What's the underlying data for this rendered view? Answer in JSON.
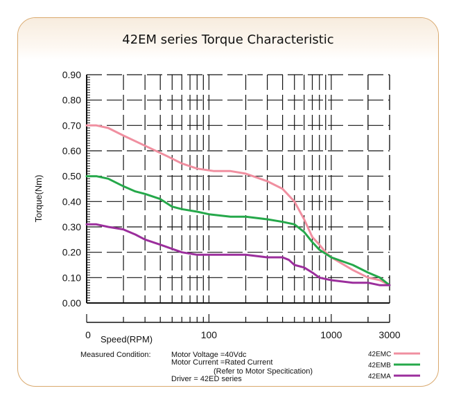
{
  "chart_data": {
    "type": "line",
    "title": "42EM series Torque Characteristic",
    "xlabel": "Speed(RPM)",
    "ylabel": "Torque(Nm)",
    "xscale": "log",
    "xlim": [
      10,
      3000
    ],
    "ylim": [
      0,
      0.9
    ],
    "x_ticks": [
      "0",
      "100",
      "1000",
      "3000"
    ],
    "y_ticks": [
      "0.00",
      "0.10",
      "0.20",
      "0.30",
      "0.40",
      "0.50",
      "0.60",
      "0.70",
      "0.80",
      "0.90"
    ],
    "grid": "dashed",
    "legend_position": "bottom-right",
    "series": [
      {
        "name": "42EMC",
        "color": "#f08fa0",
        "x": [
          10,
          12,
          15,
          20,
          30,
          45,
          60,
          80,
          110,
          150,
          200,
          300,
          400,
          500,
          600,
          700,
          800,
          900,
          1000,
          1500,
          2000,
          2500,
          3000
        ],
        "y": [
          0.7,
          0.7,
          0.69,
          0.66,
          0.62,
          0.58,
          0.55,
          0.53,
          0.52,
          0.52,
          0.51,
          0.48,
          0.45,
          0.4,
          0.33,
          0.26,
          0.23,
          0.2,
          0.18,
          0.13,
          0.1,
          0.09,
          0.07
        ]
      },
      {
        "name": "42EMB",
        "color": "#25a84a",
        "x": [
          10,
          12,
          15,
          20,
          25,
          30,
          40,
          50,
          60,
          80,
          100,
          150,
          200,
          300,
          400,
          500,
          600,
          700,
          800,
          1000,
          1500,
          2000,
          2500,
          3000
        ],
        "y": [
          0.5,
          0.5,
          0.49,
          0.46,
          0.44,
          0.43,
          0.41,
          0.38,
          0.37,
          0.36,
          0.35,
          0.34,
          0.34,
          0.33,
          0.32,
          0.31,
          0.28,
          0.24,
          0.21,
          0.18,
          0.15,
          0.12,
          0.1,
          0.07
        ]
      },
      {
        "name": "42EMA",
        "color": "#9b2e9c",
        "x": [
          10,
          12,
          15,
          20,
          25,
          30,
          40,
          60,
          80,
          100,
          120,
          150,
          200,
          300,
          400,
          450,
          500,
          600,
          700,
          800,
          1000,
          1500,
          2000,
          2500,
          3000
        ],
        "y": [
          0.31,
          0.31,
          0.3,
          0.29,
          0.27,
          0.25,
          0.23,
          0.2,
          0.19,
          0.19,
          0.19,
          0.19,
          0.19,
          0.18,
          0.18,
          0.17,
          0.15,
          0.14,
          0.12,
          0.1,
          0.09,
          0.08,
          0.08,
          0.07,
          0.07
        ]
      }
    ]
  },
  "conditions": {
    "label": "Measured Condition:",
    "lines": [
      "Motor Voltage =40Vdc",
      "Motor Current =Rated Current",
      "(Refer to Motor Specitication)",
      "Driver = 42ED series"
    ]
  }
}
